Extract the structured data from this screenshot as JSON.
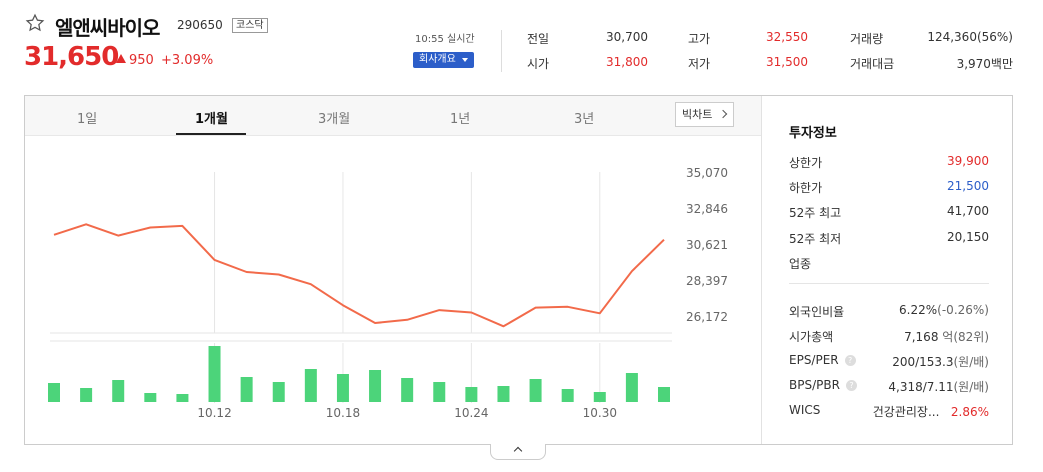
{
  "stock": {
    "name": "엘앤씨바이오",
    "code": "290650",
    "market": "코스닥",
    "price": "31,650",
    "change": "950",
    "change_rate": "+3.09%",
    "realtime": "10:55 실시간",
    "company_info_btn": "회사개요"
  },
  "quote": {
    "prev_label": "전일",
    "prev": "30,700",
    "open_label": "시가",
    "open": "31,800",
    "high_label": "고가",
    "high": "32,550",
    "low_label": "저가",
    "low": "31,500",
    "volume_label": "거래량",
    "volume": "124,360(56%)",
    "amount_label": "거래대금",
    "amount": "3,970백만"
  },
  "tabs": [
    "1일",
    "1개월",
    "3개월",
    "1년",
    "3년"
  ],
  "active_tab": "1개월",
  "bigchart_label": "빅차트",
  "sidebar": {
    "title": "투자정보",
    "upper_limit_label": "상한가",
    "upper_limit": "39,900",
    "lower_limit_label": "하한가",
    "lower_limit": "21,500",
    "w52_high_label": "52주 최고",
    "w52_high": "41,700",
    "w52_low_label": "52주 최저",
    "w52_low": "20,150",
    "sector_label": "업종",
    "foreign_label": "외국인비율",
    "foreign_value": "6.22%",
    "foreign_change": "(-0.26%)",
    "mktcap_label": "시가총액",
    "mktcap_value": "7,168",
    "mktcap_unit": "억(82위)",
    "eps_per_label": "EPS/PER",
    "eps_per_value": "200/153.3",
    "eps_per_unit": "(원/배)",
    "bps_pbr_label": "BPS/PBR",
    "bps_pbr_value": "4,318/7.11",
    "bps_pbr_unit": "(원/배)",
    "wics_label": "WICS",
    "wics_value": "건강관리장...",
    "wics_rate": "2.86%"
  },
  "colors": {
    "up": "#e22b2b",
    "down": "#2c5ec9",
    "line": "#f26a4a",
    "volume": "#4cd47a"
  },
  "chart_data": {
    "type": "line",
    "price_series": [
      31250,
      31900,
      31200,
      31700,
      31800,
      29700,
      28950,
      28800,
      28200,
      26900,
      25800,
      26000,
      26600,
      26450,
      25600,
      26750,
      26800,
      26400,
      29000,
      30950
    ],
    "volume_series": [
      19,
      14,
      22,
      9,
      8,
      56,
      25,
      20,
      33,
      28,
      32,
      24,
      20,
      15,
      16,
      23,
      13,
      10,
      29,
      15
    ],
    "y_ticks": [
      "35,070",
      "32,846",
      "30,621",
      "28,397",
      "26,172"
    ],
    "y_values": [
      35070,
      32846,
      30621,
      28397,
      26172
    ],
    "x_labels": [
      "10.12",
      "10.18",
      "10.24",
      "10.30"
    ],
    "x_label_index": [
      5,
      9,
      13,
      17
    ]
  }
}
